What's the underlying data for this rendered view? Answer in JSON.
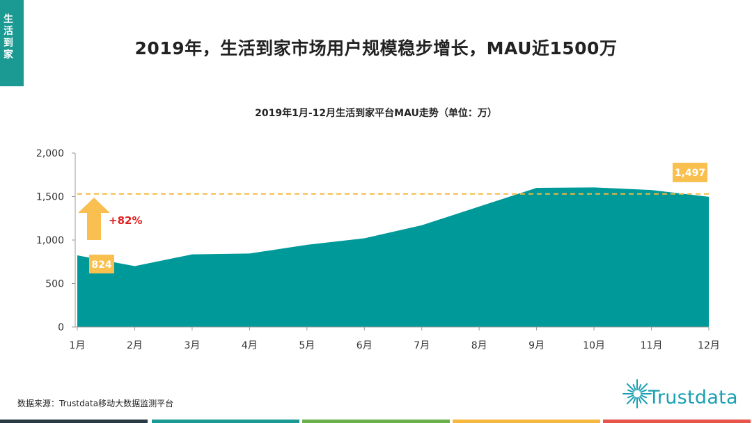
{
  "side_tab": {
    "label": "生活到家",
    "color": "#1a9a93"
  },
  "page_title": "2019年，生活到家市场用户规模稳步增长，MAU近1500万",
  "source": "数据来源：Trustdata移动大数据监测平台",
  "logo": {
    "text": "Trustdata",
    "icon": "sunburst-logo-icon"
  },
  "chart_data": {
    "type": "area",
    "title": "2019年1月-12月生活到家平台MAU走势（单位：万）",
    "categories": [
      "1月",
      "2月",
      "3月",
      "4月",
      "5月",
      "6月",
      "7月",
      "8月",
      "9月",
      "10月",
      "11月",
      "12月"
    ],
    "series": [
      {
        "values": [
          824,
          700,
          835,
          845,
          945,
          1020,
          1170,
          1385,
          1600,
          1605,
          1575,
          1497
        ]
      }
    ],
    "ylim": [
      0,
      2000
    ],
    "yticks": [
      0,
      500,
      1000,
      1500,
      2000
    ],
    "ytick_labels": [
      "0",
      "500",
      "1,000",
      "1,500",
      "2,000"
    ],
    "reference_line": {
      "value": 1530,
      "style": "dashed",
      "color": "#f5b840"
    },
    "callouts": [
      {
        "label": "824",
        "category": "1月"
      },
      {
        "label": "1,497",
        "category": "12月"
      }
    ],
    "growth_annotation": {
      "label": "+82%",
      "color": "#e02020",
      "arrow": "up-arrow-icon",
      "arrow_color": "#f9bf50"
    },
    "colors": {
      "area": "#00999a",
      "callout": "#f9c04f",
      "axis": "#999999"
    },
    "grid": false,
    "legend": "none"
  },
  "bottom_bar": [
    "#2a3a44",
    "#1a9a93",
    "#6ab04c",
    "#f5b840",
    "#e8534a"
  ]
}
